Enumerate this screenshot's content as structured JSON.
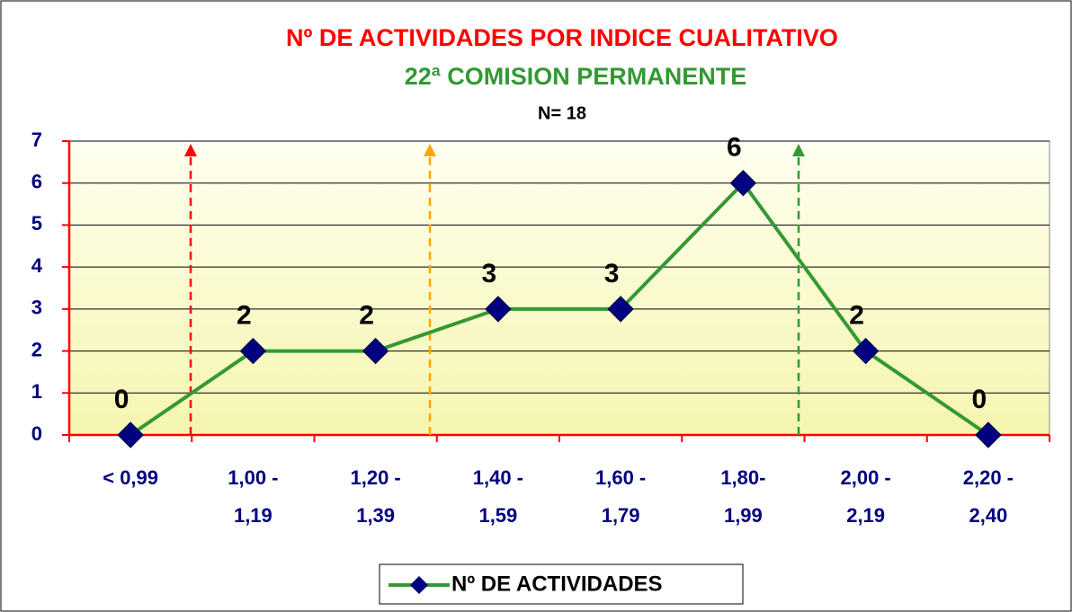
{
  "chart_data": {
    "type": "line",
    "title": "Nº DE ACTIVIDADES POR INDICE CUALITATIVO",
    "subtitle": "22ª COMISION PERMANENTE",
    "annotation": "N= 18",
    "categories": [
      "< 0,99",
      "1,00 -\n1,19",
      "1,20 -\n1,39",
      "1,40 -\n1,59",
      "1,60 -\n1,79",
      "1,80-\n1,99",
      "2,00 -\n2,19",
      "2,20 -\n2,40"
    ],
    "series": [
      {
        "name": "Nº DE ACTIVIDADES",
        "color": "#339933",
        "marker_color": "#000080",
        "values": [
          0,
          2,
          2,
          3,
          3,
          6,
          2,
          0
        ]
      }
    ],
    "ylim": [
      0,
      7
    ],
    "yticks": [
      0,
      1,
      2,
      3,
      4,
      5,
      6,
      7
    ],
    "grid": true,
    "legend": "bottom"
  }
}
